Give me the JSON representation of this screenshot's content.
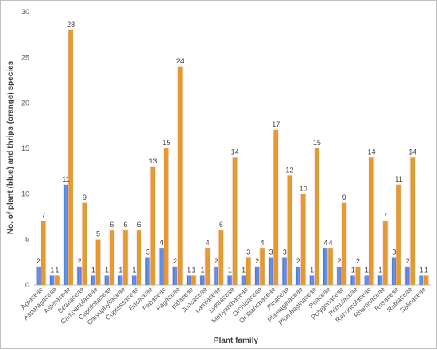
{
  "chart_data": {
    "type": "bar",
    "xlabel": "Plant family",
    "ylabel": "No. of plant  (blue) and thrips (orange) species",
    "ylim": [
      0,
      30
    ],
    "yticks": [
      0,
      5,
      10,
      15,
      20,
      25,
      30
    ],
    "grid": false,
    "categories": [
      "Apiaceae",
      "Asparagaceae",
      "Asteraceae",
      "Betulaceae",
      "Campanulaceae",
      "Caprifoliaceae",
      "Caryophyllaceae",
      "Cupressaceae",
      "Ericaceae",
      "Fabaceae",
      "Fagaceae",
      "Iridaceae",
      "Juncaceae",
      "Lamiaceae",
      "Lythraceae",
      "Menyanthaceae",
      "Orchidaceae",
      "Orobanchaceae",
      "Pinaceae",
      "Plantaginaceae",
      "Plumbaginaceae",
      "Poaceae",
      "Polygonaceae",
      "Primulaceae",
      "Ranunculaceae",
      "Rhamnaceae",
      "Rosaceae",
      "Rubiaceae",
      "Salicaceae"
    ],
    "series": [
      {
        "color": "#4472c4",
        "label_color": "#404040",
        "values": [
          2,
          1,
          11,
          2,
          1,
          1,
          1,
          1,
          3,
          4,
          2,
          1,
          1,
          2,
          1,
          1,
          2,
          3,
          3,
          2,
          1,
          4,
          2,
          1,
          1,
          1,
          3,
          2,
          1
        ]
      },
      {
        "color": "#ed7d31",
        "label_color": "#404040",
        "values": [
          7,
          1,
          28,
          9,
          5,
          6,
          6,
          6,
          13,
          15,
          24,
          1,
          4,
          6,
          14,
          3,
          4,
          17,
          12,
          10,
          15,
          4,
          9,
          2,
          14,
          7,
          11,
          14,
          1
        ]
      }
    ],
    "label_highlight_color": "#c0392b"
  }
}
